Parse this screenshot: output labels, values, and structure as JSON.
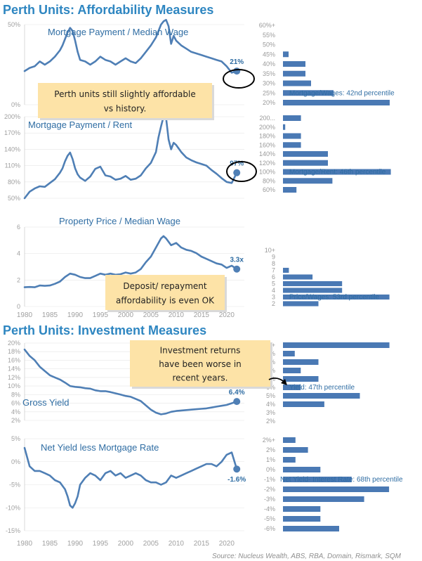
{
  "headings": {
    "affordability": "Perth Units: Affordability Measures",
    "investment": "Perth Units: Investment Measures"
  },
  "source": "Source: Nucleus Wealth, ABS, RBA, Domain, Rismark, SQM",
  "x_axis_ticks": [
    "1980",
    "1985",
    "1990",
    "1995",
    "2000",
    "2005",
    "2010",
    "2015",
    "2020"
  ],
  "annotations": {
    "note1": [
      "Perth units still slightly affordable",
      "vs history."
    ],
    "note2": [
      "Deposit/ repayment",
      "affordability is even OK"
    ],
    "note3": [
      "Investment returns",
      "have been worse in",
      "recent years."
    ]
  },
  "colors": {
    "line": "#4f7fb5",
    "bar": "#4a79b4",
    "heading": "#2e86c1",
    "note_fill": "#fde3a7",
    "grid": "#e6e6e6"
  },
  "chart_data": [
    {
      "type": "line",
      "title": "Mortgage Payment / Median Wage",
      "y_ticks": [
        "50%",
        "0%"
      ],
      "ylim": [
        0,
        0.5
      ],
      "x": [
        1980,
        1981,
        1982,
        1983,
        1984,
        1985,
        1986,
        1987,
        1987.5,
        1988,
        1988.5,
        1989,
        1989.5,
        1990,
        1990.5,
        1991,
        1992,
        1993,
        1994,
        1995,
        1996,
        1997,
        1998,
        1999,
        2000,
        2001,
        2002,
        2003,
        2004,
        2005,
        2006,
        2006.5,
        2007,
        2007.5,
        2008,
        2008.5,
        2009,
        2009.5,
        2010,
        2011,
        2012,
        2013,
        2014,
        2015,
        2016,
        2017,
        2018,
        2019,
        2020,
        2021,
        2022
      ],
      "y": [
        0.21,
        0.23,
        0.24,
        0.27,
        0.25,
        0.27,
        0.3,
        0.34,
        0.37,
        0.41,
        0.45,
        0.48,
        0.46,
        0.4,
        0.33,
        0.28,
        0.27,
        0.25,
        0.27,
        0.3,
        0.28,
        0.27,
        0.25,
        0.27,
        0.29,
        0.27,
        0.26,
        0.29,
        0.33,
        0.37,
        0.42,
        0.46,
        0.5,
        0.52,
        0.53,
        0.49,
        0.38,
        0.43,
        0.4,
        0.37,
        0.35,
        0.33,
        0.32,
        0.31,
        0.3,
        0.29,
        0.28,
        0.27,
        0.24,
        0.2,
        0.21
      ],
      "end_label": "21%",
      "end_value": 0.21,
      "hist": {
        "categories": [
          "60%+",
          "55%",
          "50%",
          "45%",
          "40%",
          "35%",
          "30%",
          "25%",
          "20%"
        ],
        "values": [
          0,
          0,
          0,
          1,
          4,
          4,
          5,
          9,
          19
        ],
        "max": 20,
        "label": "Mortgage/Wages: 42nd percentile",
        "highlight_index": 7
      }
    },
    {
      "type": "line",
      "title": "Mortgage Payment / Rent",
      "y_ticks": [
        "200%",
        "170%",
        "140%",
        "110%",
        "80%",
        "50%"
      ],
      "ylim": [
        0.5,
        2.0
      ],
      "x": [
        1980,
        1981,
        1982,
        1983,
        1984,
        1985,
        1986,
        1987,
        1987.5,
        1988,
        1988.5,
        1989,
        1989.5,
        1990,
        1990.5,
        1991,
        1992,
        1993,
        1994,
        1995,
        1996,
        1997,
        1998,
        1999,
        2000,
        2001,
        2002,
        2003,
        2004,
        2005,
        2006,
        2006.5,
        2007,
        2007.5,
        2008,
        2008.5,
        2009,
        2009.5,
        2010,
        2011,
        2012,
        2013,
        2014,
        2015,
        2016,
        2017,
        2018,
        2019,
        2020,
        2021,
        2022
      ],
      "y": [
        0.5,
        0.62,
        0.68,
        0.72,
        0.71,
        0.78,
        0.85,
        0.97,
        1.05,
        1.18,
        1.28,
        1.34,
        1.22,
        1.05,
        0.94,
        0.88,
        0.82,
        0.9,
        1.04,
        1.08,
        0.92,
        0.9,
        0.84,
        0.86,
        0.91,
        0.84,
        0.86,
        0.92,
        1.05,
        1.15,
        1.35,
        1.62,
        1.82,
        2.0,
        1.98,
        1.58,
        1.4,
        1.52,
        1.48,
        1.35,
        1.25,
        1.2,
        1.16,
        1.13,
        1.1,
        1.02,
        0.95,
        0.87,
        0.8,
        0.78,
        0.97
      ],
      "end_label": "97%",
      "end_value": 0.97,
      "hist": {
        "categories": [
          "200...",
          "200%",
          "180%",
          "160%",
          "140%",
          "120%",
          "100%",
          "80%",
          "60%"
        ],
        "values": [
          4,
          0.5,
          4,
          4,
          10,
          10,
          24,
          11,
          3
        ],
        "max": 25,
        "label": "Mortgage/Rent: 46th percentile",
        "highlight_index": 6
      }
    },
    {
      "type": "line",
      "title": "Property Price / Median Wage",
      "y_ticks": [
        "6",
        "4",
        "2",
        "0"
      ],
      "ylim": [
        0,
        7
      ],
      "x": [
        1980,
        1981,
        1982,
        1983,
        1984,
        1985,
        1986,
        1987,
        1988,
        1989,
        1990,
        1991,
        1992,
        1993,
        1994,
        1995,
        1996,
        1997,
        1998,
        1999,
        2000,
        2001,
        2002,
        2003,
        2004,
        2005,
        2006,
        2007,
        2007.5,
        2008,
        2009,
        2010,
        2011,
        2012,
        2013,
        2014,
        2015,
        2016,
        2017,
        2018,
        2019,
        2020,
        2021,
        2022
      ],
      "y": [
        1.7,
        1.72,
        1.7,
        1.85,
        1.82,
        1.85,
        2.0,
        2.2,
        2.6,
        2.9,
        2.8,
        2.6,
        2.5,
        2.5,
        2.7,
        2.9,
        2.8,
        2.9,
        2.8,
        2.85,
        3.0,
        2.9,
        3.0,
        3.3,
        3.9,
        4.4,
        5.2,
        6.0,
        6.2,
        6.0,
        5.4,
        5.6,
        5.2,
        5.0,
        4.9,
        4.7,
        4.4,
        4.2,
        4.0,
        3.8,
        3.7,
        3.4,
        3.6,
        3.3
      ],
      "end_label": "3.3x",
      "end_value": 3.3,
      "hist": {
        "categories": [
          "10+",
          "9",
          "8",
          "7",
          "6",
          "5",
          "4",
          "3",
          "2"
        ],
        "values": [
          0,
          0,
          0,
          1,
          5,
          10,
          10,
          18,
          6
        ],
        "max": 19,
        "label": "Price/Wages: 53rd percentile",
        "highlight_index": 7
      }
    },
    {
      "type": "line",
      "title": "Gross Yield",
      "y_ticks": [
        "20%",
        "18%",
        "16%",
        "14%",
        "12%",
        "10%",
        "8%",
        "6%",
        "4%",
        "2%"
      ],
      "ylim": [
        0.02,
        0.2
      ],
      "x": [
        1980,
        1981,
        1982,
        1983,
        1984,
        1985,
        1986,
        1987,
        1988,
        1989,
        1990,
        1991,
        1992,
        1993,
        1994,
        1995,
        1996,
        1997,
        1998,
        1999,
        2000,
        2001,
        2002,
        2003,
        2004,
        2005,
        2006,
        2007,
        2008,
        2009,
        2010,
        2011,
        2012,
        2013,
        2014,
        2015,
        2016,
        2017,
        2018,
        2019,
        2020,
        2021,
        2022
      ],
      "y": [
        0.185,
        0.17,
        0.16,
        0.145,
        0.135,
        0.125,
        0.12,
        0.115,
        0.108,
        0.1,
        0.098,
        0.097,
        0.095,
        0.094,
        0.09,
        0.088,
        0.088,
        0.086,
        0.083,
        0.08,
        0.077,
        0.075,
        0.07,
        0.065,
        0.055,
        0.045,
        0.038,
        0.034,
        0.036,
        0.04,
        0.042,
        0.043,
        0.044,
        0.045,
        0.046,
        0.047,
        0.048,
        0.05,
        0.052,
        0.054,
        0.056,
        0.06,
        0.064
      ],
      "end_label": "6.4%",
      "end_value": 0.064,
      "hist": {
        "categories": [
          "10%+",
          "10%",
          "9%",
          "8%",
          "7%",
          "6%",
          "5%",
          "4%",
          "3%",
          "2%"
        ],
        "values": [
          18,
          2,
          6,
          3,
          6,
          3,
          13,
          7,
          0,
          0
        ],
        "max": 19,
        "label": "Yield: 47th percentile",
        "highlight_index": 5
      }
    },
    {
      "type": "line",
      "title": "Net Yield less Mortgage Rate",
      "y_ticks": [
        "5%",
        "0%",
        "-5%",
        "-10%",
        "-15%"
      ],
      "ylim": [
        -0.15,
        0.05
      ],
      "x": [
        1980,
        1981,
        1982,
        1983,
        1984,
        1985,
        1986,
        1987,
        1988,
        1988.5,
        1989,
        1989.5,
        1990,
        1990.5,
        1991,
        1992,
        1993,
        1994,
        1995,
        1996,
        1997,
        1998,
        1999,
        2000,
        2001,
        2002,
        2003,
        2004,
        2005,
        2006,
        2007,
        2008,
        2009,
        2010,
        2011,
        2012,
        2013,
        2014,
        2015,
        2016,
        2017,
        2018,
        2019,
        2020,
        2021,
        2022
      ],
      "y": [
        0.03,
        -0.01,
        -0.02,
        -0.02,
        -0.025,
        -0.03,
        -0.04,
        -0.045,
        -0.06,
        -0.075,
        -0.095,
        -0.1,
        -0.09,
        -0.075,
        -0.05,
        -0.035,
        -0.025,
        -0.03,
        -0.04,
        -0.025,
        -0.02,
        -0.03,
        -0.025,
        -0.035,
        -0.03,
        -0.025,
        -0.03,
        -0.04,
        -0.045,
        -0.045,
        -0.05,
        -0.045,
        -0.03,
        -0.035,
        -0.03,
        -0.025,
        -0.02,
        -0.015,
        -0.01,
        -0.005,
        -0.005,
        -0.01,
        0.0,
        0.015,
        0.02,
        -0.016
      ],
      "end_label": "-1.6%",
      "end_value": -0.016,
      "hist": {
        "categories": [
          "2%+",
          "2%",
          "1%",
          "0%",
          "-1%",
          "-2%",
          "-3%",
          "-4%",
          "-5%",
          "-6%"
        ],
        "values": [
          2,
          4,
          2,
          6,
          11,
          17,
          13,
          6,
          6,
          9
        ],
        "max": 18,
        "label": "Net Yield- Interest Rate: 68th percentile",
        "highlight_index": 4
      }
    }
  ]
}
